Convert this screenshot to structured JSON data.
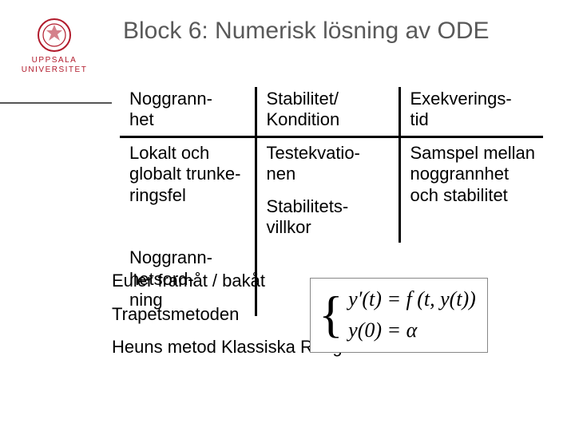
{
  "university": {
    "line1": "UPPSALA",
    "line2": "UNIVERSITET",
    "seal_color": "#b11a2b"
  },
  "title": "Block 6: Numerisk lösning av ODE",
  "table": {
    "headers": [
      "Noggrann-\nhet",
      "Stabilitet/\nKondition",
      "Exekverings-\ntid"
    ],
    "row": {
      "c1": "Lokalt och globalt trunke-\nringsfel",
      "c2a": "Testekvatio-\nnen",
      "c2b": "Stabilitets-\nvillkor",
      "c3": "Samspel mellan noggrannhet och stabilitet"
    },
    "extra_c1": "Noggrann-\nhetsord-\nning"
  },
  "below": {
    "line1": "Euler framåt / bakåt",
    "line2": "Trapetsmetoden",
    "line3": "Heuns metod   Klassiska Runge-Kuttas metod"
  },
  "equation": {
    "l1": "y′(t) = f (t, y(t))",
    "l2": "y(0) = α"
  },
  "colors": {
    "title": "#595959",
    "text": "#000000",
    "rule": "#555555",
    "border": "#000000"
  }
}
